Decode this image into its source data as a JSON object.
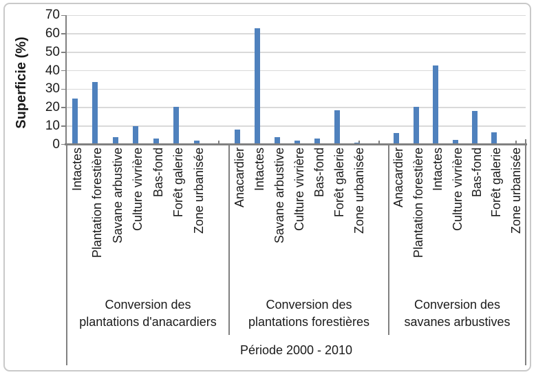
{
  "chart_data": {
    "type": "bar",
    "title": "",
    "ylabel": "Superficie (%)",
    "xlabel": "Période 2000 - 2010",
    "ylim": [
      0,
      70
    ],
    "yticks": [
      0,
      10,
      20,
      30,
      40,
      50,
      60,
      70
    ],
    "grid": true,
    "legend": "none",
    "groups": [
      {
        "title_lines": [
          "Conversion des",
          "plantations d'anacardiers"
        ],
        "categories": [
          "Intactes",
          "Plantation forestière",
          "Savane arbustive",
          "Culture vivrière",
          "Bas-fond",
          "Forêt galerie",
          "Zone urbanisée"
        ],
        "values": [
          25,
          34,
          4,
          10,
          3,
          20.5,
          2
        ]
      },
      {
        "title_lines": [
          "Conversion des",
          "plantations forestières"
        ],
        "categories": [
          "Anacardier",
          "Intactes",
          "Savane arbustive",
          "Culture vivrière",
          "Bas-fond",
          "Forêt galerie",
          "Zone urbanisée"
        ],
        "values": [
          8,
          63,
          4,
          2,
          3,
          18.5,
          1
        ]
      },
      {
        "title_lines": [
          "Conversion des",
          "savanes arbustives"
        ],
        "categories": [
          "Anacardier",
          "Plantation forestière",
          "Intactes",
          "Culture vivrière",
          "Bas-fond",
          "Forêt galerie",
          "Zone urbanisée"
        ],
        "values": [
          6,
          20.5,
          43,
          2.5,
          18,
          6.5,
          0.5
        ]
      }
    ],
    "colors": {
      "bar": "#4f81bd",
      "axis": "#808080",
      "gridline": "#d9d9d9",
      "text": "#1a1a1a",
      "frame": "#c9c9c9"
    }
  }
}
